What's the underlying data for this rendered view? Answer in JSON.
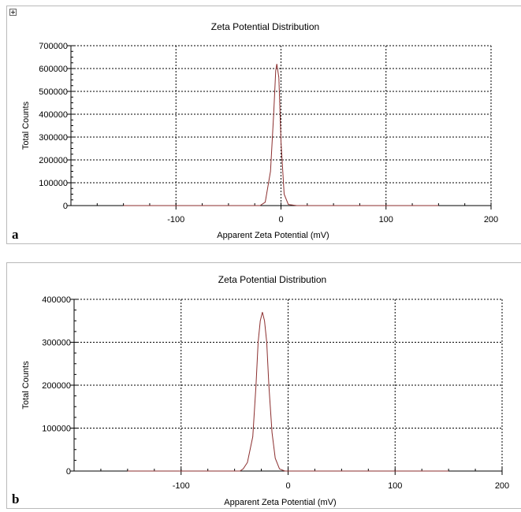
{
  "panels": [
    {
      "letter": "a"
    },
    {
      "letter": "b"
    }
  ],
  "colors": {
    "curve": "#8b2e2e",
    "grid": "#000000",
    "background": "#ffffff"
  },
  "icon": "expand-plus-icon",
  "chart_data": [
    {
      "type": "line",
      "title": "Zeta Potential Distribution",
      "xlabel": "Apparent Zeta Potential (mV)",
      "ylabel": "Total Counts",
      "xlim": [
        -200,
        200
      ],
      "ylim": [
        0,
        700000
      ],
      "xticks": [
        -100,
        0,
        100,
        200
      ],
      "yticks": [
        0,
        100000,
        200000,
        300000,
        400000,
        500000,
        600000,
        700000
      ],
      "grid": true,
      "series": [
        {
          "x": [
            -150,
            -20,
            -15,
            -10,
            -7,
            -5,
            -4,
            -2,
            0,
            3,
            7,
            15,
            150
          ],
          "y": [
            0,
            0,
            15000,
            150000,
            400000,
            590000,
            620000,
            560000,
            280000,
            50000,
            5000,
            0,
            0
          ]
        }
      ]
    },
    {
      "type": "line",
      "title": "Zeta Potential Distribution",
      "xlabel": "Apparent Zeta Potential (mV)",
      "ylabel": "Total Counts",
      "xlim": [
        -200,
        200
      ],
      "ylim": [
        0,
        400000
      ],
      "xticks": [
        -100,
        0,
        100,
        200
      ],
      "yticks": [
        0,
        100000,
        200000,
        300000,
        400000
      ],
      "grid": true,
      "series": [
        {
          "x": [
            -150,
            -45,
            -42,
            -38,
            -33,
            -30,
            -28,
            -26,
            -24,
            -22,
            -20,
            -18,
            -15,
            -12,
            -8,
            -3,
            150
          ],
          "y": [
            0,
            0,
            5000,
            20000,
            80000,
            200000,
            300000,
            350000,
            370000,
            350000,
            300000,
            200000,
            90000,
            30000,
            5000,
            0,
            0
          ]
        }
      ]
    }
  ]
}
